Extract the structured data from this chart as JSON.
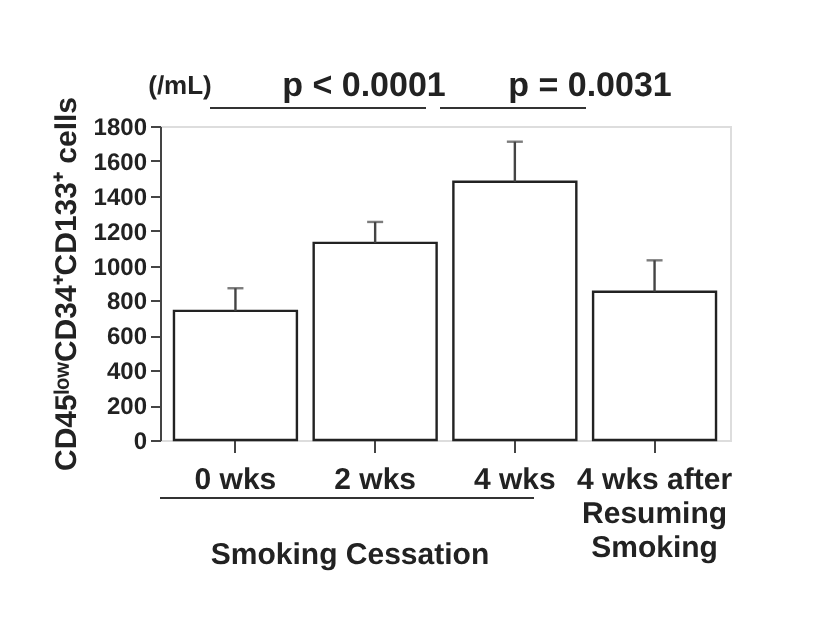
{
  "chart_data": {
    "type": "bar",
    "ylabel": "CD45ˡᵒʷCD34⁺CD133⁺ cells",
    "categories": [
      "0 wks",
      "2 wks",
      "4 wks",
      "4 wks after\nResuming\nSmoking"
    ],
    "values": [
      740,
      1130,
      1480,
      850
    ],
    "errors": [
      [
        740,
        870
      ],
      [
        1130,
        1250
      ],
      [
        1480,
        1710
      ],
      [
        850,
        1030
      ]
    ],
    "color": "#ffffff",
    "ylim": [
      0,
      1800
    ],
    "yticks": [
      0,
      200,
      400,
      600,
      800,
      1000,
      1200,
      1400,
      1600,
      1800
    ],
    "grid": false,
    "annotations": [
      "(/mL)",
      "p < 0.0001",
      "p = 0.0031",
      "Smoking Cessation"
    ]
  }
}
